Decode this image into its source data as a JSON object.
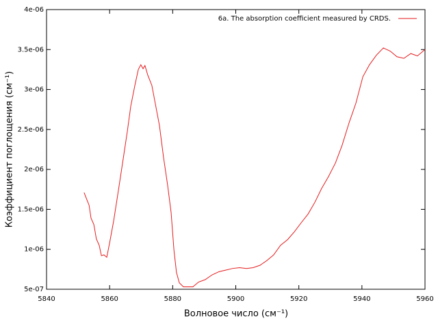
{
  "chart_data": {
    "type": "line",
    "x_label": "Волновое число (см⁻¹)",
    "y_label": "Коэффициент поглощения (см⁻¹)",
    "legend": "top-right",
    "grid": false,
    "xlim": [
      5840,
      5960
    ],
    "xticks": [
      5840,
      5860,
      5880,
      5900,
      5920,
      5940,
      5960
    ],
    "ylim": [
      5e-07,
      4e-06
    ],
    "yticks": [
      {
        "value": 5e-07,
        "label": "5e-07"
      },
      {
        "value": 1e-06,
        "label": "1e-06"
      },
      {
        "value": 1.5e-06,
        "label": "1.5e-06"
      },
      {
        "value": 2e-06,
        "label": "2e-06"
      },
      {
        "value": 2.5e-06,
        "label": "2.5e-06"
      },
      {
        "value": 3e-06,
        "label": "3e-06"
      },
      {
        "value": 3.5e-06,
        "label": "3.5e-06"
      },
      {
        "value": 4e-06,
        "label": "4e-06"
      }
    ],
    "x": [
      5851.9,
      5853.5,
      5854.1,
      5855.0,
      5855.8,
      5856.7,
      5857.4,
      5858.2,
      5859.1,
      5860.0,
      5861.3,
      5862.8,
      5864.3,
      5865.6,
      5866.7,
      5868.0,
      5869.1,
      5869.9,
      5870.6,
      5871.2,
      5872.1,
      5873.4,
      5874.5,
      5875.8,
      5877.1,
      5878.4,
      5879.5,
      5880.4,
      5881.2,
      5882.1,
      5883.4,
      5884.9,
      5886.4,
      5888.2,
      5890.3,
      5892.5,
      5894.7,
      5896.9,
      5899.0,
      5901.2,
      5903.4,
      5905.5,
      5907.7,
      5909.9,
      5912.0,
      5914.2,
      5916.4,
      5918.6,
      5920.7,
      5922.9,
      5925.1,
      5927.2,
      5929.4,
      5931.6,
      5933.7,
      5935.9,
      5938.1,
      5940.3,
      5942.4,
      5944.6,
      5946.8,
      5949.0,
      5951.1,
      5953.3,
      5955.5,
      5957.6,
      5960.0
    ],
    "series": [
      {
        "name": "6a. The absorption coefficient measured by CRDS.",
        "color": "#e41a1c",
        "values": [
          1.71e-06,
          1.55e-06,
          1.39e-06,
          1.31e-06,
          1.13e-06,
          1.05e-06,
          9.2e-07,
          9.3e-07,
          9e-07,
          1.08e-06,
          1.36e-06,
          1.74e-06,
          2.13e-06,
          2.47e-06,
          2.79e-06,
          3.05e-06,
          3.25e-06,
          3.31e-06,
          3.26e-06,
          3.3e-06,
          3.18e-06,
          3.05e-06,
          2.82e-06,
          2.55e-06,
          2.15e-06,
          1.8e-06,
          1.46e-06,
          9.9e-07,
          7.1e-07,
          5.8e-07,
          5.3e-07,
          5.3e-07,
          5.3e-07,
          5.9e-07,
          6.2e-07,
          6.8e-07,
          7.2e-07,
          7.4e-07,
          7.6e-07,
          7.7e-07,
          7.6e-07,
          7.7e-07,
          8e-07,
          8.6e-07,
          9.3e-07,
          1.05e-06,
          1.12e-06,
          1.22e-06,
          1.33e-06,
          1.44e-06,
          1.59e-06,
          1.76e-06,
          1.91e-06,
          2.08e-06,
          2.3e-06,
          2.58e-06,
          2.83e-06,
          3.16e-06,
          3.31e-06,
          3.43e-06,
          3.52e-06,
          3.48e-06,
          3.41e-06,
          3.39e-06,
          3.45e-06,
          3.42e-06,
          3.5e-06
        ]
      }
    ]
  }
}
